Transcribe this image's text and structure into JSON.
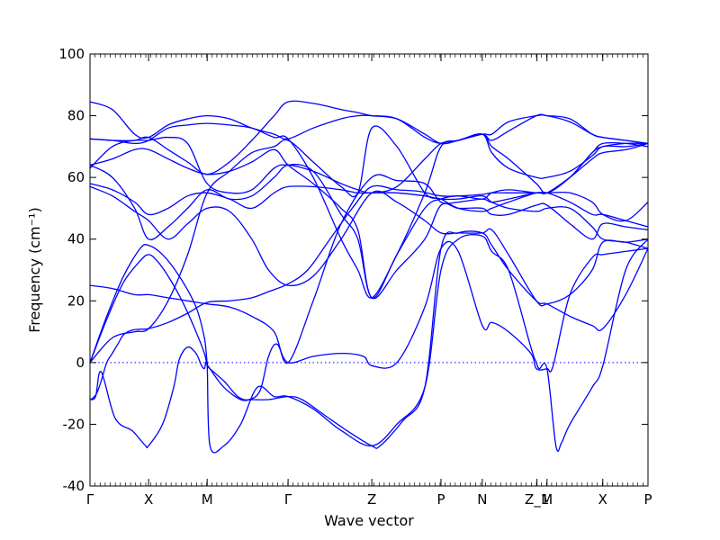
{
  "chart_data": {
    "type": "line",
    "title": "",
    "xlabel": "Wave vector",
    "ylabel": "Frequency (cm⁻¹)",
    "ylim": [
      -40,
      100
    ],
    "yticks": [
      -40,
      -20,
      0,
      20,
      40,
      60,
      80,
      100
    ],
    "xlim": [
      0,
      1
    ],
    "xticks": [
      {
        "label": "Γ",
        "x": 0.0
      },
      {
        "label": "X",
        "x": 0.105
      },
      {
        "label": "M",
        "x": 0.21
      },
      {
        "label": "Γ",
        "x": 0.355
      },
      {
        "label": "Z",
        "x": 0.505
      },
      {
        "label": "P",
        "x": 0.629
      },
      {
        "label": "N",
        "x": 0.703
      },
      {
        "label": "Z_1",
        "x": 0.801
      },
      {
        "label": "M",
        "x": 0.819
      },
      {
        "label": "X",
        "x": 0.919
      },
      {
        "label": "P",
        "x": 1.0
      }
    ],
    "zero_line": true,
    "color": "#0000ff",
    "series": [
      {
        "x": [
          0,
          0.005,
          0.012,
          0.02,
          0.03,
          0.04,
          0.05,
          0.06,
          0.075,
          0.09,
          0.105,
          0.14,
          0.175,
          0.21,
          0.25,
          0.29,
          0.32,
          0.355,
          0.39,
          0.43,
          0.47,
          0.505,
          0.55,
          0.59,
          0.629,
          0.66,
          0.703,
          0.72,
          0.75,
          0.8,
          0.819,
          0.86,
          0.9,
          0.919,
          0.96,
          1.0
        ],
        "y": [
          -12,
          -11.5,
          -10,
          -6,
          0,
          3,
          6,
          9,
          10.5,
          10.8,
          11,
          13,
          16,
          19.5,
          20,
          21,
          23,
          25.5,
          30,
          40,
          50,
          57,
          56,
          55.5,
          54,
          54,
          54.5,
          55,
          55,
          55,
          55,
          52,
          48,
          48,
          46,
          44
        ]
      },
      {
        "x": [
          0,
          0.03,
          0.06,
          0.09,
          0.105,
          0.13,
          0.16,
          0.19,
          0.205,
          0.21,
          0.215,
          0.24,
          0.27,
          0.29,
          0.32,
          0.355,
          0.38,
          0.42,
          0.46,
          0.505,
          0.52,
          0.56,
          0.6,
          0.629,
          0.66,
          0.703,
          0.72,
          0.75,
          0.8,
          0.819,
          0.86,
          0.9,
          0.919,
          0.96,
          1.0
        ],
        "y": [
          0,
          15,
          28,
          37,
          38,
          35,
          28,
          18,
          8,
          0,
          -2,
          -8,
          -12,
          -12,
          -12,
          -11,
          -12,
          -17,
          -22,
          -27,
          -27,
          -19,
          -8,
          37,
          42,
          42,
          38,
          30,
          20,
          19,
          15,
          12,
          11,
          22,
          37
        ]
      },
      {
        "x": [
          0,
          0.03,
          0.06,
          0.09,
          0.105,
          0.12,
          0.14,
          0.165,
          0.19,
          0.205,
          0.21,
          0.215,
          0.24,
          0.265,
          0.285,
          0.305,
          0.32,
          0.335,
          0.355,
          0.4,
          0.45,
          0.49,
          0.505,
          0.55,
          0.6,
          0.629,
          0.66,
          0.703,
          0.72,
          0.75,
          0.79,
          0.8,
          0.819,
          0.83,
          0.86,
          0.9,
          0.919,
          0.96,
          1.0
        ],
        "y": [
          0,
          14,
          26,
          33,
          35,
          33,
          28,
          20,
          10,
          3,
          -1,
          -2,
          -6,
          -11,
          -12,
          -9,
          2,
          6,
          0,
          2,
          3,
          2,
          -1,
          0,
          18,
          37,
          36,
          12,
          13,
          10,
          3,
          -2,
          -2,
          -1,
          22,
          34,
          35,
          36,
          37
        ]
      },
      {
        "x": [
          0,
          0.01,
          0.02,
          0.045,
          0.075,
          0.09,
          0.1,
          0.105,
          0.13,
          0.15,
          0.16,
          0.175,
          0.19,
          0.2,
          0.205,
          0.21,
          0.215,
          0.24,
          0.27,
          0.3,
          0.33,
          0.355,
          0.4,
          0.45,
          0.505,
          0.55,
          0.6,
          0.629,
          0.66,
          0.703,
          0.72,
          0.75,
          0.79,
          0.8,
          0.805,
          0.819,
          0.835,
          0.845,
          0.86,
          0.9,
          0.919,
          0.96,
          1.0
        ],
        "y": [
          -12,
          -11,
          -3,
          -18,
          -22,
          -25,
          -27,
          -27,
          -20,
          -8,
          1,
          5,
          3,
          -1,
          -2,
          -1,
          -27,
          -27,
          -20,
          -8,
          -11,
          -11,
          -15,
          -22,
          -27,
          -20,
          -8,
          30,
          40,
          41,
          36,
          30,
          5,
          0,
          -2,
          -2,
          -27,
          -26,
          -20,
          -8,
          -1,
          30,
          40
        ]
      },
      {
        "x": [
          0,
          0.04,
          0.08,
          0.105,
          0.14,
          0.175,
          0.21,
          0.25,
          0.29,
          0.33,
          0.355,
          0.4,
          0.45,
          0.505,
          0.55,
          0.6,
          0.629,
          0.66,
          0.703,
          0.72,
          0.75,
          0.8,
          0.819,
          0.86,
          0.9,
          0.919,
          0.96,
          1.0
        ],
        "y": [
          25,
          24,
          22,
          22,
          21,
          20,
          19,
          18,
          15,
          10,
          0,
          20,
          45,
          60,
          59,
          58,
          52,
          52,
          53,
          52,
          53,
          55,
          55,
          60,
          68,
          70,
          71,
          71
        ]
      },
      {
        "x": [
          0,
          0.04,
          0.08,
          0.105,
          0.14,
          0.175,
          0.21,
          0.25,
          0.29,
          0.32,
          0.355,
          0.4,
          0.45,
          0.505,
          0.55,
          0.6,
          0.629,
          0.66,
          0.703,
          0.72,
          0.75,
          0.8,
          0.819,
          0.86,
          0.9,
          0.919,
          0.96,
          1.0
        ],
        "y": [
          57,
          54,
          49,
          46,
          40,
          45,
          50,
          49,
          40,
          30,
          25,
          28,
          40,
          55,
          52,
          46,
          42,
          42,
          42,
          43,
          35,
          20,
          19,
          22,
          30,
          39,
          39,
          40
        ]
      },
      {
        "x": [
          0,
          0.04,
          0.08,
          0.105,
          0.14,
          0.175,
          0.21,
          0.25,
          0.29,
          0.33,
          0.355,
          0.4,
          0.45,
          0.48,
          0.505,
          0.55,
          0.6,
          0.629,
          0.66,
          0.703,
          0.72,
          0.75,
          0.8,
          0.819,
          0.86,
          0.9,
          0.919,
          0.96,
          1.0
        ],
        "y": [
          58,
          56,
          52,
          48,
          50,
          54,
          55,
          53,
          50,
          55,
          57,
          57,
          56,
          55,
          55,
          55,
          54,
          53,
          53,
          54,
          52,
          50,
          49,
          50,
          50,
          44,
          40,
          39,
          37
        ]
      },
      {
        "x": [
          0,
          0.04,
          0.08,
          0.105,
          0.14,
          0.175,
          0.21,
          0.25,
          0.29,
          0.33,
          0.355,
          0.4,
          0.45,
          0.48,
          0.505,
          0.55,
          0.6,
          0.629,
          0.66,
          0.703,
          0.72,
          0.75,
          0.8,
          0.819,
          0.86,
          0.9,
          0.919,
          0.96,
          1.0
        ],
        "y": [
          64,
          60,
          50,
          40,
          44,
          50,
          56,
          53,
          54,
          60,
          64,
          62,
          48,
          40,
          21,
          30,
          40,
          51,
          50,
          50,
          48,
          48,
          51,
          51,
          45,
          40,
          45,
          44,
          43
        ]
      },
      {
        "x": [
          0,
          0.04,
          0.08,
          0.105,
          0.14,
          0.175,
          0.21,
          0.25,
          0.29,
          0.33,
          0.355,
          0.4,
          0.45,
          0.48,
          0.505,
          0.55,
          0.6,
          0.629,
          0.66,
          0.703,
          0.72,
          0.75,
          0.8,
          0.819,
          0.86,
          0.9,
          0.919,
          0.96,
          1.0
        ],
        "y": [
          64,
          66,
          69,
          69,
          66,
          63,
          61,
          62,
          65,
          69,
          64,
          58,
          50,
          43,
          21,
          35,
          50,
          53,
          54,
          53,
          55,
          56,
          55,
          55,
          55,
          52,
          48,
          46,
          52
        ]
      },
      {
        "x": [
          0,
          0.04,
          0.08,
          0.105,
          0.14,
          0.175,
          0.21,
          0.25,
          0.29,
          0.33,
          0.355,
          0.4,
          0.45,
          0.48,
          0.505,
          0.55,
          0.6,
          0.629,
          0.66,
          0.703,
          0.72,
          0.75,
          0.8,
          0.819,
          0.86,
          0.9,
          0.919,
          0.96,
          1.0
        ],
        "y": [
          63,
          70,
          72,
          72,
          73,
          71,
          58,
          55,
          56,
          63,
          64,
          62,
          58,
          56,
          55,
          57,
          66,
          71,
          72,
          74,
          68,
          63,
          60,
          60,
          62,
          67,
          70,
          70,
          71
        ]
      },
      {
        "x": [
          0,
          0.04,
          0.08,
          0.105,
          0.14,
          0.175,
          0.21,
          0.25,
          0.29,
          0.33,
          0.355,
          0.4,
          0.45,
          0.48,
          0.505,
          0.55,
          0.6,
          0.629,
          0.66,
          0.703,
          0.72,
          0.75,
          0.8,
          0.819,
          0.86,
          0.9,
          0.919,
          0.96,
          1.0
        ],
        "y": [
          72.5,
          72,
          71,
          72,
          76,
          77,
          77.5,
          77,
          76,
          73,
          72.5,
          60,
          40,
          30,
          21,
          35,
          55,
          70,
          72,
          74,
          72,
          75,
          80,
          80,
          79,
          74,
          73,
          72,
          71
        ]
      },
      {
        "x": [
          0,
          0.04,
          0.08,
          0.105,
          0.14,
          0.175,
          0.21,
          0.25,
          0.29,
          0.33,
          0.355,
          0.4,
          0.45,
          0.48,
          0.505,
          0.55,
          0.6,
          0.629,
          0.66,
          0.703,
          0.72,
          0.75,
          0.8,
          0.819,
          0.86,
          0.9,
          0.919,
          0.96,
          1.0
        ],
        "y": [
          84.5,
          82,
          74,
          73,
          77,
          79,
          80,
          79,
          76,
          74,
          72.5,
          76,
          79,
          80,
          80,
          79,
          73,
          71,
          72,
          74,
          70,
          66,
          58,
          55,
          60,
          68,
          71,
          71,
          70
        ]
      },
      {
        "x": [
          0,
          0.04,
          0.08,
          0.105,
          0.14,
          0.175,
          0.21,
          0.25,
          0.29,
          0.33,
          0.355,
          0.4,
          0.45,
          0.48,
          0.505,
          0.55,
          0.6,
          0.629,
          0.66,
          0.703,
          0.72,
          0.75,
          0.8,
          0.819,
          0.86,
          0.9,
          0.919,
          0.96,
          1.0
        ],
        "y": [
          72.5,
          72,
          72,
          73,
          69,
          65,
          61,
          65,
          72,
          80,
          84.5,
          84,
          82,
          81,
          80,
          79,
          74,
          71,
          72,
          74,
          74,
          78,
          80,
          80,
          78,
          74,
          73,
          72,
          71
        ]
      },
      {
        "x": [
          0,
          0.04,
          0.08,
          0.105,
          0.14,
          0.175,
          0.21,
          0.25,
          0.29,
          0.33,
          0.355,
          0.4,
          0.45,
          0.48,
          0.505,
          0.55,
          0.6,
          0.629,
          0.66,
          0.703,
          0.72,
          0.75,
          0.8,
          0.819,
          0.86,
          0.9,
          0.919,
          0.96,
          1.0
        ],
        "y": [
          0,
          8,
          10,
          11,
          20,
          35,
          55,
          62,
          68,
          70,
          72,
          65,
          57,
          55,
          76,
          70,
          55,
          53,
          50,
          49,
          50,
          52,
          55,
          55,
          60,
          66,
          68,
          69,
          71
        ]
      }
    ]
  }
}
